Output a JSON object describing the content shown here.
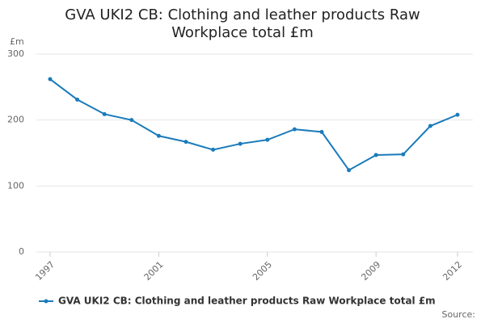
{
  "chart_data": {
    "type": "line",
    "title": "GVA UKI2 CB: Clothing and leather products Raw Workplace total £m",
    "y_label": "£m",
    "x": [
      1997,
      1998,
      1999,
      2000,
      2001,
      2002,
      2003,
      2004,
      2005,
      2006,
      2007,
      2008,
      2009,
      2010,
      2011,
      2012
    ],
    "series": [
      {
        "name": "GVA UKI2 CB: Clothing and leather products Raw Workplace total £m",
        "color": "#1a7bbb",
        "values": [
          262,
          231,
          209,
          200,
          176,
          167,
          155,
          164,
          170,
          186,
          182,
          124,
          147,
          148,
          191,
          208
        ]
      }
    ],
    "xlim": [
      1997,
      2012
    ],
    "xticks": [
      1997,
      2001,
      2005,
      2009,
      2012
    ],
    "ylim": [
      0,
      300
    ],
    "yticks": [
      0,
      100,
      200,
      300
    ],
    "grid": true,
    "source": "Source:"
  }
}
